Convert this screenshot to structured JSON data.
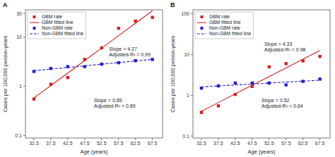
{
  "chart_data": [
    {
      "type": "scatter",
      "title": "A",
      "x_label": "Age (years)",
      "y_label": "Cases per 100,000 person-years",
      "log": "y",
      "grid": false,
      "legend": "upper left",
      "xlim": [
        30,
        70.5
      ],
      "xticks": [
        32.5,
        37.5,
        42.5,
        47.5,
        52.5,
        57.5,
        62.5,
        67.5
      ],
      "ylim": [
        0.0891250938,
        35.4813389
      ],
      "yticks": [
        0.1,
        1,
        10,
        30
      ],
      "x": [
        32.5,
        37.5,
        42.5,
        47.5,
        52.5,
        57.5,
        62.5,
        67.5
      ],
      "series": [
        {
          "name": "GBM rate",
          "type": "scatter",
          "marker": "square",
          "color": "#d42020",
          "values": [
            0.55,
            1.1,
            1.5,
            3.5,
            6.0,
            15.0,
            21.0,
            25.0
          ]
        },
        {
          "name": "GBM fitted line",
          "type": "line",
          "line_style": "solid",
          "color": "#d42020",
          "values": [
            0.5781,
            1.0348,
            1.8524,
            3.3159,
            5.9357,
            10.625,
            19.02,
            34.048
          ]
        },
        {
          "name": "Non-GBM rate",
          "type": "scatter",
          "marker": "square",
          "color": "#2020cc",
          "values": [
            2.0,
            2.3,
            2.5,
            2.5,
            2.8,
            3.0,
            3.3,
            3.5
          ]
        },
        {
          "name": "Non-GBM fitted line",
          "type": "line",
          "line_style": "dashed",
          "color": "#2020cc",
          "values": [
            2.0663,
            2.2294,
            2.4054,
            2.5953,
            2.8002,
            3.0212,
            3.2598,
            3.5171
          ]
        }
      ],
      "annotations": [
        "Slope = 4.27\nAdjusted-R² = 0.99",
        "Slope = 0.65\nAdjusted-R² = 0.89"
      ]
    },
    {
      "type": "scatter",
      "title": "B",
      "x_label": "Age (years)",
      "y_label": "Cases per 100,000 person-years",
      "log": "y",
      "grid": false,
      "legend": "upper left",
      "xlim": [
        30,
        70.5
      ],
      "xticks": [
        32.5,
        37.5,
        42.5,
        47.5,
        52.5,
        57.5,
        62.5,
        67.5
      ],
      "ylim": [
        0.0891250938,
        125.892541
      ],
      "yticks": [
        0.1,
        1,
        10,
        100
      ],
      "x": [
        32.5,
        37.5,
        42.5,
        47.5,
        52.5,
        57.5,
        62.5,
        67.5
      ],
      "series": [
        {
          "name": "GBM rate",
          "type": "scatter",
          "marker": "square",
          "color": "#d42020",
          "values": [
            0.38,
            0.55,
            1.05,
            1.65,
            5.0,
            6.0,
            7.0,
            9.0
          ]
        },
        {
          "name": "GBM fitted line",
          "type": "line",
          "line_style": "solid",
          "color": "#d42020",
          "values": [
            0.40615,
            0.66337,
            1.0835,
            1.7696,
            2.8903,
            4.7207,
            7.7102,
            12.593
          ]
        },
        {
          "name": "Non-GBM rate",
          "type": "scatter",
          "marker": "square",
          "color": "#2020cc",
          "values": [
            1.5,
            1.7,
            2.0,
            2.0,
            2.0,
            1.8,
            2.2,
            2.5
          ]
        },
        {
          "name": "Non-GBM fitted line",
          "type": "line",
          "line_style": "dashed",
          "color": "#2020cc",
          "values": [
            1.6064,
            1.6958,
            1.7901,
            1.8897,
            1.9949,
            2.1059,
            2.2231,
            2.3468
          ]
        }
      ],
      "annotations": [
        "Slope = 4.33\nAdjusted-R² = 0.98",
        "Slope = 0.52\nAdjusted-R² = 0.64"
      ]
    }
  ]
}
